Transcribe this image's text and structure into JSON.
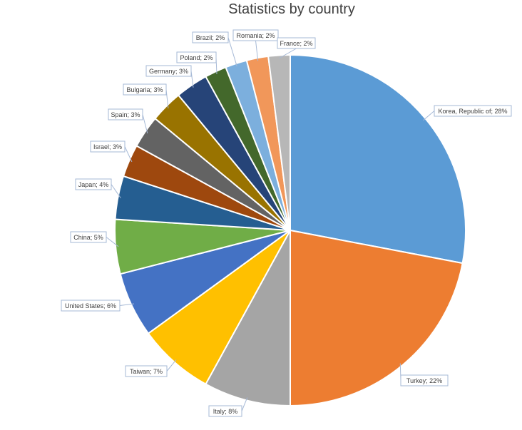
{
  "chart_data": {
    "type": "pie",
    "title": "Statistics by country",
    "slices": [
      {
        "label": "Korea, Republic of",
        "value": 28,
        "text": "Korea, Republic of; 28%",
        "color": "#5b9bd5"
      },
      {
        "label": "Turkey",
        "value": 22,
        "text": "Turkey; 22%",
        "color": "#ed7d31"
      },
      {
        "label": "Italy",
        "value": 8,
        "text": "Italy; 8%",
        "color": "#a5a5a5"
      },
      {
        "label": "Taiwan",
        "value": 7,
        "text": "Taiwan; 7%",
        "color": "#ffc000"
      },
      {
        "label": "United States",
        "value": 6,
        "text": "United States; 6%",
        "color": "#4472c4"
      },
      {
        "label": "China",
        "value": 5,
        "text": "China; 5%",
        "color": "#70ad47"
      },
      {
        "label": "Japan",
        "value": 4,
        "text": "Japan; 4%",
        "color": "#255e91"
      },
      {
        "label": "Israel",
        "value": 3,
        "text": "Israel; 3%",
        "color": "#9e480e"
      },
      {
        "label": "Spain",
        "value": 3,
        "text": "Spain; 3%",
        "color": "#636363"
      },
      {
        "label": "Bulgaria",
        "value": 3,
        "text": "Bulgaria; 3%",
        "color": "#997300"
      },
      {
        "label": "Germany",
        "value": 3,
        "text": "Germany; 3%",
        "color": "#264478"
      },
      {
        "label": "Poland",
        "value": 2,
        "text": "Poland; 2%",
        "color": "#43682b"
      },
      {
        "label": "Brazil",
        "value": 2,
        "text": "Brazil; 2%",
        "color": "#7cafdd"
      },
      {
        "label": "Romania",
        "value": 2,
        "text": "Romania; 2%",
        "color": "#f1975a"
      },
      {
        "label": "France",
        "value": 2,
        "text": "France; 2%",
        "color": "#b7b7b7"
      }
    ]
  }
}
